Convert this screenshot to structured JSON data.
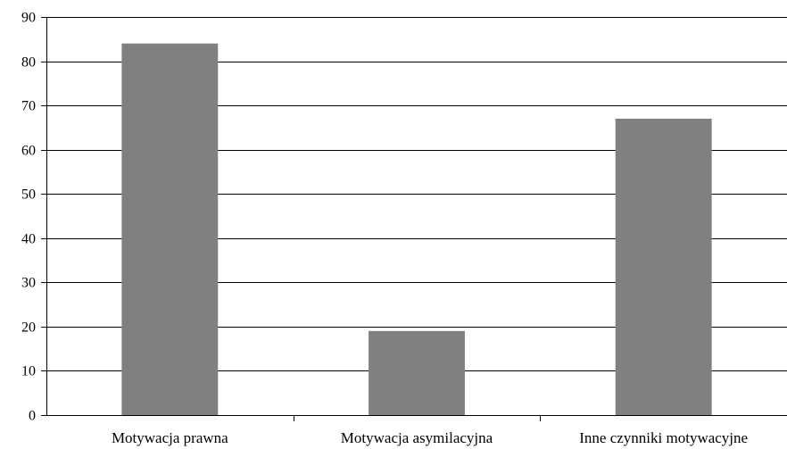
{
  "chart_data": {
    "type": "bar",
    "title": "",
    "xlabel": "",
    "ylabel": "",
    "categories": [
      "Motywacja prawna",
      "Motywacja asymilacyjna",
      "Inne czynniki motywacyjne"
    ],
    "values": [
      84,
      19,
      67
    ],
    "ylim": [
      0,
      90
    ],
    "yticks": [
      0,
      10,
      20,
      30,
      40,
      50,
      60,
      70,
      80,
      90
    ],
    "grid": true,
    "legend": "none",
    "bar_color": "#808080"
  }
}
